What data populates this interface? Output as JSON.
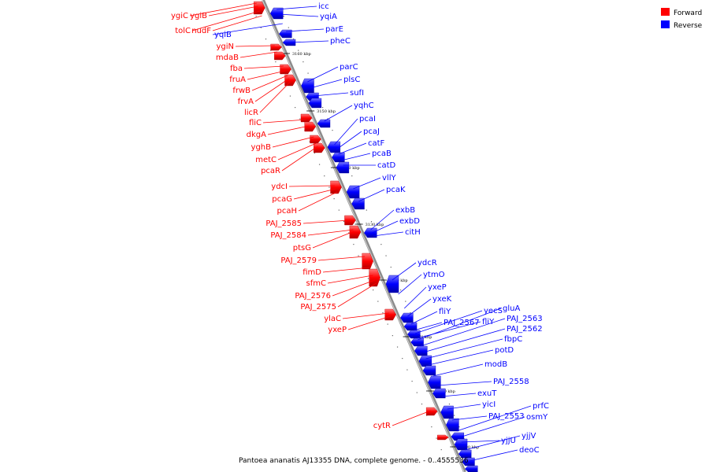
{
  "legend": {
    "forward": {
      "label": "Forward",
      "color": "#ff0000"
    },
    "reverse": {
      "label": "Reverse",
      "color": "#0000ff"
    }
  },
  "caption": "Pantoea ananatis AJ13355 DNA, complete genome. - 0..4555536",
  "ticks": [
    "3160 kbp",
    "3150 kbp",
    "3140 kbp",
    "3130 kbp",
    "3120 kbp",
    "3110 kbp",
    "3100 kbp",
    "3090 kbp"
  ],
  "forward_genes": [
    "ygiC",
    "ygiB",
    "tolC",
    "nudF",
    "ygiN",
    "mdaB",
    "fba",
    "fruA",
    "frwB",
    "frvA",
    "licR",
    "fliC",
    "dkgA",
    "yghB",
    "metC",
    "pcaR",
    "ydcI",
    "pcaG",
    "pcaH",
    "PAJ_2585",
    "PAJ_2584",
    "ptsG",
    "PAJ_2579",
    "fimD",
    "sfmC",
    "PAJ_2576",
    "PAJ_2575",
    "ylaC",
    "yxeP",
    "cytR"
  ],
  "reverse_genes": [
    "icc",
    "yqiA",
    "yqiB",
    "parE",
    "pheC",
    "parC",
    "plsC",
    "sufI",
    "yqhC",
    "pcaI",
    "pcaJ",
    "catF",
    "pcaB",
    "catD",
    "vllY",
    "pcaK",
    "exbB",
    "exbD",
    "citH",
    "ydcR",
    "ytmO",
    "yxeP",
    "yxeK",
    "fliY",
    "PAJ_2567",
    "yecS",
    "fliY",
    "gluA",
    "PAJ_2563",
    "PAJ_2562",
    "fbpC",
    "potD",
    "modB",
    "PAJ_2558",
    "exuT",
    "yicI",
    "PAJ_2553",
    "prfC",
    "osmY",
    "yjjU",
    "yjjV",
    "deoC"
  ]
}
